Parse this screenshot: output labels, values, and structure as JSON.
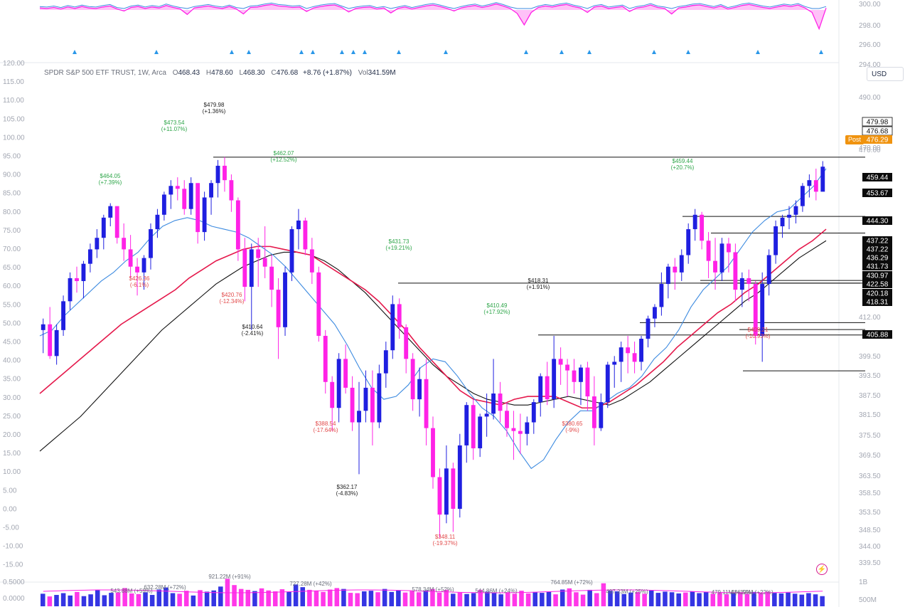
{
  "symbol": {
    "name": "SPDR S&P 500 ETF TRUST, 1W, Arca",
    "open_key": "O",
    "open": "468.43",
    "high_key": "H",
    "high": "478.60",
    "low_key": "L",
    "low": "468.30",
    "close_key": "C",
    "close": "476.68",
    "change": "+8.76 (+1.87%)",
    "vol_key": "Vol",
    "vol": "341.59M"
  },
  "currency": "USD",
  "post_label": "Post",
  "colors": {
    "up": "#1f1fe0",
    "down": "#ff22e6",
    "ma_fast": "#3d8be0",
    "ma_mid": "#e5194c",
    "ma_slow": "#111111",
    "post": "#f0930f"
  },
  "right_axis": [
    "300.00",
    "298.00",
    "296.00",
    "294.00",
    "490.00",
    "470.00",
    "459.44",
    "453.67",
    "444.30",
    "437.22",
    "431.73",
    "422.58",
    "412.00",
    "405.88",
    "399.50",
    "393.50",
    "387.50",
    "381.50",
    "375.50",
    "369.50",
    "363.50",
    "358.50",
    "353.50",
    "348.50",
    "344.00",
    "339.50",
    "1B",
    "500M"
  ],
  "left_axis": [
    "120.00",
    "115.00",
    "110.00",
    "105.00",
    "100.00",
    "95.00",
    "90.00",
    "85.00",
    "80.00",
    "75.00",
    "70.00",
    "65.00",
    "60.00",
    "55.00",
    "50.00",
    "45.00",
    "40.00",
    "35.00",
    "30.00",
    "25.00",
    "20.00",
    "15.00",
    "10.00",
    "5.00",
    "0.00",
    "-5.00",
    "-10.00",
    "-15.00",
    "0.5000",
    "0.0000"
  ],
  "price_tags": [
    {
      "text": "479.98",
      "style": "white"
    },
    {
      "text": "476.68",
      "style": "white"
    },
    {
      "text": "476.29",
      "style": "post"
    },
    {
      "text": "470.00",
      "style": "axis"
    },
    {
      "text": "459.44",
      "style": "dark"
    },
    {
      "text": "453.67",
      "style": "dark"
    },
    {
      "text": "444.30",
      "style": "dark"
    },
    {
      "text": "437.22",
      "style": "dark"
    },
    {
      "text": "437.22",
      "style": "dark"
    },
    {
      "text": "436.29",
      "style": "dark"
    },
    {
      "text": "431.73",
      "style": "dark"
    },
    {
      "text": "430.97",
      "style": "dark"
    },
    {
      "text": "422.58",
      "style": "dark"
    },
    {
      "text": "420.18",
      "style": "dark"
    },
    {
      "text": "418.31",
      "style": "dark"
    },
    {
      "text": "405.88",
      "style": "dark"
    }
  ],
  "annotations": [
    {
      "price": "$479.98",
      "pct": "(+1.36%)",
      "kind": "neutral"
    },
    {
      "price": "$473.54",
      "pct": "(+11.07%)",
      "kind": "up"
    },
    {
      "price": "$464.05",
      "pct": "(+7.39%)",
      "kind": "up"
    },
    {
      "price": "$462.07",
      "pct": "(+12.52%)",
      "kind": "up"
    },
    {
      "price": "$426.36",
      "pct": "(-6.1%)",
      "kind": "down"
    },
    {
      "price": "$420.76",
      "pct": "(-12.34%)",
      "kind": "down"
    },
    {
      "price": "$410.64",
      "pct": "(-2.41%)",
      "kind": "neutral"
    },
    {
      "price": "$388.54",
      "pct": "(-17.64%)",
      "kind": "down"
    },
    {
      "price": "$362.17",
      "pct": "(-4.83%)",
      "kind": "neutral"
    },
    {
      "price": "$431.73",
      "pct": "(+19.21%)",
      "kind": "up"
    },
    {
      "price": "$348.11",
      "pct": "(-19.37%)",
      "kind": "down"
    },
    {
      "price": "$410.49",
      "pct": "(+17.92%)",
      "kind": "up"
    },
    {
      "price": "$418.31",
      "pct": "(+1.91%)",
      "kind": "neutral"
    },
    {
      "price": "$380.65",
      "pct": "(-9%)",
      "kind": "down"
    },
    {
      "price": "$459.44",
      "pct": "(+20.7%)",
      "kind": "up"
    },
    {
      "price": "$409.21",
      "pct": "(-10.93%)",
      "kind": "down"
    }
  ],
  "volume_labels": [
    "543.88M (+59%)",
    "632.28M (+72%)",
    "921.22M (+91%)",
    "727.28M (+42%)",
    "578.34M (+52%)",
    "544.86M (+24%)",
    "764.85M (+72%)",
    "497.23M (+25%)",
    "479.11M (+19%)",
    "486.59M (+22%)"
  ],
  "chart_data": {
    "type": "candlestick",
    "title": "SPDR S&P 500 ETF TRUST, 1W, Arca",
    "interval": "1W",
    "y_range": [
      339.5,
      495
    ],
    "bars": [
      [
        420,
        424,
        412,
        422
      ],
      [
        422,
        428,
        410,
        411
      ],
      [
        411,
        422,
        408,
        420
      ],
      [
        420,
        432,
        418,
        430
      ],
      [
        430,
        440,
        427,
        438
      ],
      [
        438,
        442,
        433,
        437
      ],
      [
        437,
        444,
        431,
        443
      ],
      [
        443,
        450,
        440,
        448
      ],
      [
        448,
        455,
        445,
        452
      ],
      [
        452,
        460,
        448,
        459
      ],
      [
        459,
        464,
        456,
        463
      ],
      [
        463,
        462,
        450,
        452
      ],
      [
        452,
        457,
        444,
        448
      ],
      [
        448,
        453,
        438,
        442
      ],
      [
        442,
        445,
        432,
        440
      ],
      [
        440,
        446,
        434,
        445
      ],
      [
        445,
        457,
        441,
        455
      ],
      [
        455,
        462,
        452,
        460
      ],
      [
        460,
        468,
        458,
        467
      ],
      [
        467,
        472,
        462,
        470
      ],
      [
        470,
        473,
        465,
        469
      ],
      [
        469,
        472,
        460,
        462
      ],
      [
        462,
        473,
        460,
        471
      ],
      [
        471,
        470,
        450,
        454
      ],
      [
        454,
        468,
        451,
        466
      ],
      [
        466,
        472,
        460,
        471
      ],
      [
        471,
        479,
        466,
        477
      ],
      [
        477,
        480,
        468,
        472
      ],
      [
        472,
        474,
        461,
        465
      ],
      [
        465,
        466,
        444,
        448
      ],
      [
        448,
        452,
        430,
        435
      ],
      [
        435,
        450,
        420,
        448
      ],
      [
        448,
        452,
        435,
        445
      ],
      [
        445,
        456,
        438,
        442
      ],
      [
        442,
        446,
        428,
        434
      ],
      [
        434,
        438,
        410,
        421
      ],
      [
        421,
        442,
        418,
        440
      ],
      [
        440,
        456,
        437,
        455
      ],
      [
        455,
        462,
        448,
        458
      ],
      [
        458,
        459,
        446,
        448
      ],
      [
        448,
        452,
        436,
        440
      ],
      [
        440,
        442,
        416,
        418
      ],
      [
        418,
        420,
        398,
        402
      ],
      [
        402,
        404,
        385,
        393
      ],
      [
        393,
        412,
        388,
        410
      ],
      [
        410,
        415,
        398,
        400
      ],
      [
        400,
        404,
        385,
        388
      ],
      [
        388,
        402,
        370,
        392
      ],
      [
        392,
        406,
        388,
        400
      ],
      [
        400,
        406,
        380,
        388
      ],
      [
        388,
        408,
        386,
        405
      ],
      [
        405,
        416,
        400,
        413
      ],
      [
        413,
        432,
        410,
        429
      ],
      [
        429,
        431,
        417,
        421
      ],
      [
        421,
        422,
        405,
        410
      ],
      [
        410,
        412,
        392,
        396
      ],
      [
        396,
        407,
        390,
        403
      ],
      [
        403,
        410,
        380,
        386
      ],
      [
        386,
        390,
        365,
        369
      ],
      [
        369,
        372,
        348,
        356
      ],
      [
        356,
        380,
        353,
        372
      ],
      [
        372,
        374,
        350,
        358
      ],
      [
        358,
        384,
        355,
        380
      ],
      [
        380,
        395,
        374,
        394
      ],
      [
        394,
        396,
        375,
        379
      ],
      [
        379,
        391,
        376,
        390
      ],
      [
        390,
        398,
        383,
        391
      ],
      [
        391,
        410,
        389,
        398
      ],
      [
        398,
        402,
        388,
        392
      ],
      [
        392,
        395,
        383,
        386
      ],
      [
        386,
        392,
        375,
        385
      ],
      [
        385,
        391,
        377,
        384
      ],
      [
        384,
        390,
        380,
        388
      ],
      [
        388,
        396,
        384,
        395
      ],
      [
        395,
        405,
        390,
        404
      ],
      [
        404,
        409,
        394,
        396
      ],
      [
        396,
        418,
        393,
        410
      ],
      [
        410,
        414,
        401,
        408
      ],
      [
        408,
        410,
        397,
        406
      ],
      [
        406,
        410,
        398,
        402
      ],
      [
        402,
        408,
        394,
        407
      ],
      [
        407,
        409,
        392,
        397
      ],
      [
        397,
        404,
        380,
        386
      ],
      [
        386,
        398,
        385,
        395
      ],
      [
        395,
        409,
        393,
        408
      ],
      [
        408,
        411,
        400,
        409
      ],
      [
        409,
        416,
        402,
        414
      ],
      [
        414,
        418,
        405,
        412
      ],
      [
        412,
        416,
        405,
        409
      ],
      [
        409,
        418,
        406,
        417
      ],
      [
        417,
        425,
        414,
        424
      ],
      [
        424,
        429,
        421,
        428
      ],
      [
        428,
        440,
        425,
        436
      ],
      [
        436,
        443,
        431,
        442
      ],
      [
        442,
        445,
        434,
        440
      ],
      [
        440,
        448,
        437,
        446
      ],
      [
        446,
        457,
        443,
        455
      ],
      [
        455,
        462,
        451,
        460
      ],
      [
        460,
        461,
        448,
        451
      ],
      [
        451,
        454,
        438,
        444
      ],
      [
        444,
        452,
        434,
        440
      ],
      [
        440,
        452,
        437,
        450
      ],
      [
        450,
        452,
        440,
        447
      ],
      [
        447,
        450,
        430,
        434
      ],
      [
        434,
        440,
        428,
        438
      ],
      [
        438,
        441,
        430,
        436
      ],
      [
        436,
        437,
        415,
        418
      ],
      [
        418,
        440,
        409,
        436
      ],
      [
        436,
        448,
        432,
        446
      ],
      [
        446,
        458,
        443,
        456
      ],
      [
        456,
        460,
        452,
        459
      ],
      [
        459,
        463,
        455,
        460
      ],
      [
        460,
        465,
        457,
        463
      ],
      [
        463,
        471,
        461,
        470
      ],
      [
        470,
        474,
        466,
        472
      ],
      [
        472,
        476,
        465,
        468
      ],
      [
        468,
        478.6,
        468.3,
        476.68
      ]
    ],
    "ma_fast": [
      418,
      420,
      425,
      429,
      433,
      437,
      440,
      444,
      447,
      452,
      456,
      458,
      459,
      458,
      456,
      455,
      454,
      452,
      449,
      446,
      442,
      437,
      432,
      427,
      422,
      415,
      407,
      400,
      396,
      397,
      401,
      407,
      410,
      409,
      404,
      398,
      393,
      390,
      385,
      378,
      372,
      375,
      382,
      388,
      392,
      392,
      395,
      398,
      400,
      404,
      410,
      414,
      420,
      428,
      434,
      438,
      442,
      448,
      454,
      458,
      461,
      462,
      466,
      470,
      476
    ],
    "ma_mid": [
      398,
      402,
      406,
      410,
      414,
      418,
      422,
      425,
      428,
      431,
      434,
      438,
      441,
      444,
      446,
      448,
      449,
      449,
      448,
      447,
      446,
      443,
      440,
      437,
      434,
      430,
      425,
      420,
      414,
      409,
      404,
      399,
      396,
      395,
      394,
      396,
      397,
      397,
      397,
      395,
      393,
      393,
      395,
      398,
      401,
      405,
      409,
      414,
      418,
      422,
      426,
      429,
      433,
      436,
      440,
      444,
      448,
      451,
      455
    ],
    "ma_slow": [
      378,
      382,
      386,
      390,
      395,
      400,
      405,
      410,
      415,
      420,
      424,
      428,
      432,
      436,
      439,
      442,
      444,
      446,
      447,
      447,
      446,
      444,
      441,
      437,
      433,
      428,
      423,
      418,
      413,
      408,
      404,
      401,
      398,
      396,
      395,
      394,
      394,
      395,
      396,
      397,
      396,
      395,
      394,
      396,
      399,
      402,
      406,
      410,
      414,
      418,
      422,
      426,
      430,
      433,
      437,
      441,
      445,
      448,
      451
    ],
    "volume": [
      0.42,
      0.33,
      0.38,
      0.44,
      0.36,
      0.48,
      0.34,
      0.4,
      0.54,
      0.37,
      0.45,
      0.46,
      0.61,
      0.43,
      0.41,
      0.47,
      0.38,
      0.56,
      0.63,
      0.44,
      0.42,
      0.52,
      0.36,
      0.54,
      0.49,
      0.53,
      0.66,
      0.92,
      0.71,
      0.58,
      0.55,
      0.51,
      0.6,
      0.53,
      0.5,
      0.57,
      0.49,
      0.73,
      0.64,
      0.55,
      0.52,
      0.48,
      0.56,
      0.61,
      0.58,
      0.45,
      0.44,
      0.5,
      0.52,
      0.47,
      0.58,
      0.48,
      0.54,
      0.46,
      0.51,
      0.47,
      0.53,
      0.58,
      0.46,
      0.55,
      0.42,
      0.46,
      0.41,
      0.44,
      0.55,
      0.49,
      0.45,
      0.4,
      0.47,
      0.42,
      0.52,
      0.43,
      0.48,
      0.45,
      0.49,
      0.4,
      0.56,
      0.6,
      0.47,
      0.39,
      0.55,
      0.44,
      0.77,
      0.52,
      0.5,
      0.41,
      0.46,
      0.48,
      0.42,
      0.53,
      0.45,
      0.49,
      0.47,
      0.43,
      0.46,
      0.5,
      0.44,
      0.48,
      0.42,
      0.45,
      0.4,
      0.46,
      0.47,
      0.41,
      0.48,
      0.44,
      0.49,
      0.45,
      0.43,
      0.46,
      0.42,
      0.39,
      0.44,
      0.4,
      0.34
    ],
    "oscillator": [
      0.4,
      0.3,
      0.5,
      0.2,
      0.6,
      0.3,
      0.7,
      0.4,
      0.3,
      0.6,
      0.8,
      0.2,
      -0.2,
      0.5,
      0.7,
      0.3,
      0.6,
      0.4,
      0.9,
      0.5,
      0.2,
      -0.9,
      0.4,
      0.6,
      0.8,
      0.5,
      0.3,
      0.7,
      0.2,
      -0.8,
      0.5,
      0.6,
      0.9,
      1.1,
      0.8,
      0.7,
      0.5,
      0.6,
      -0.3,
      0.4,
      0.7,
      0.9,
      1.0,
      0.5,
      -0.4,
      0.3,
      0.5,
      0.6,
      0.2,
      0.4,
      -0.6,
      0.3,
      0.6,
      0.2,
      0.5,
      0.8,
      1.0,
      0.7,
      0.3,
      -0.2,
      0.4,
      0.7,
      0.9,
      0.5,
      0.8,
      1.2,
      0.8,
      0.3,
      -0.7,
      -3.0,
      -0.5,
      0.5,
      0.8,
      0.6,
      0.9,
      1.1,
      0.7,
      0.4,
      -0.5,
      0.6,
      0.8,
      0.3,
      0.5,
      0.7,
      -0.3,
      0.4,
      0.6,
      1.0,
      0.5,
      0.3,
      -0.8,
      0.4,
      0.6,
      0.9,
      1.0,
      0.7,
      0.4,
      0.8,
      0.2,
      0.5,
      0.9,
      1.1,
      0.8,
      0.5,
      0.3,
      0.6,
      0.9,
      0.7,
      1.0,
      0.4,
      -0.5,
      -3.8,
      0.4
    ]
  }
}
